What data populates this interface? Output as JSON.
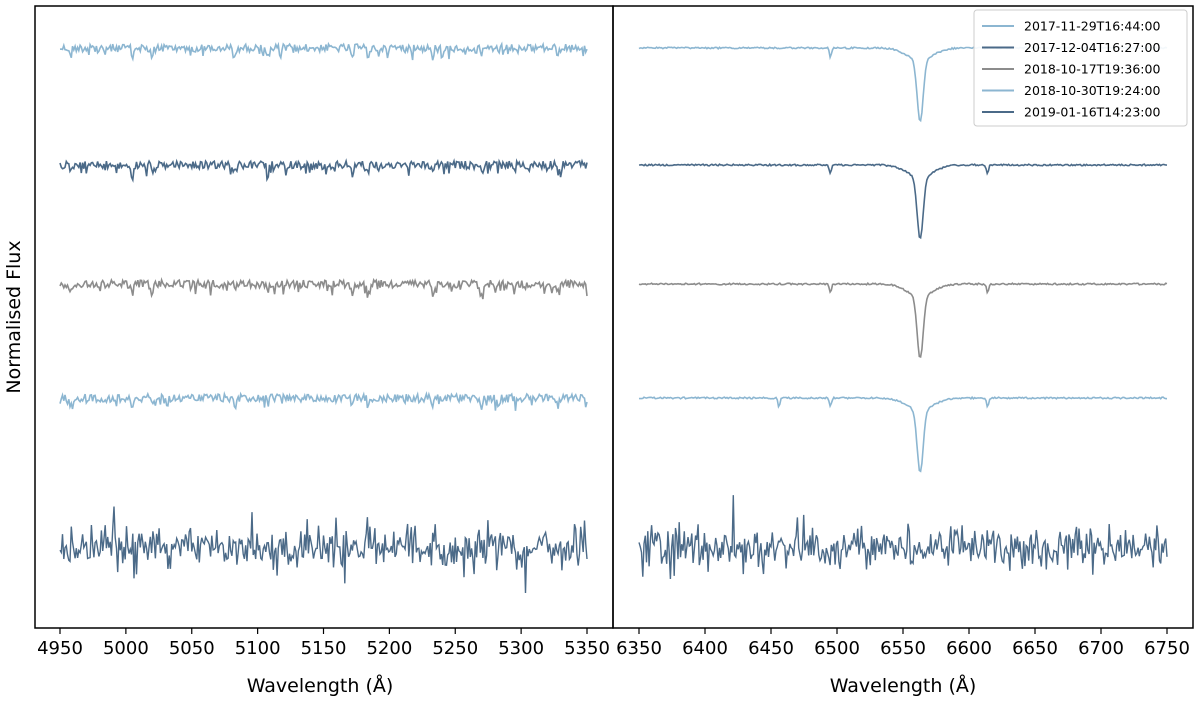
{
  "chart_data": {
    "type": "line",
    "ylabel": "Normalised Flux",
    "legend": {
      "placement": "top-right",
      "entries": [
        {
          "label": "2017-11-29T16:44:00",
          "color": "#8cb6d1"
        },
        {
          "label": "2017-12-04T16:27:00",
          "color": "#4b6a88"
        },
        {
          "label": "2018-10-17T19:36:00",
          "color": "#8c8c8c"
        },
        {
          "label": "2018-10-30T19:24:00",
          "color": "#8cb6d1"
        },
        {
          "label": "2019-01-16T14:23:00",
          "color": "#4b6a88"
        }
      ]
    },
    "panels": [
      {
        "xlabel": "Wavelength (Å)",
        "xlim": [
          4950,
          5350
        ],
        "xticks": [
          4950,
          5000,
          5050,
          5100,
          5150,
          5200,
          5250,
          5300,
          5350
        ],
        "xtick_labels": [
          "4950",
          "5000",
          "5050",
          "5100",
          "5150",
          "5200",
          "5250",
          "5300",
          "5350"
        ],
        "grid": false,
        "series": [
          {
            "color": "#8cb6d1",
            "offset_level": 4,
            "absorption_lines": [
              4958,
              4979,
              5005,
              5020,
              5083,
              5108,
              5172,
              5184,
              5233,
              5270,
              5283,
              5328
            ]
          },
          {
            "color": "#4b6a88",
            "offset_level": 3,
            "absorption_lines": [
              4958,
              5005,
              5020,
              5083,
              5108,
              5172,
              5184,
              5233,
              5270,
              5328
            ]
          },
          {
            "color": "#8c8c8c",
            "offset_level": 2,
            "absorption_lines": [
              4958,
              5005,
              5020,
              5108,
              5172,
              5184,
              5233,
              5270,
              5328
            ]
          },
          {
            "color": "#8cb6d1",
            "offset_level": 1,
            "absorption_lines": [
              4960,
              5005,
              5020,
              5083,
              5108,
              5172,
              5184,
              5233,
              5270,
              5283,
              5328
            ]
          },
          {
            "color": "#4b6a88",
            "offset_level": 0,
            "noisy": true
          }
        ]
      },
      {
        "xlabel": "Wavelength (Å)",
        "xlim": [
          6350,
          6750
        ],
        "xticks": [
          6350,
          6400,
          6450,
          6500,
          6550,
          6600,
          6650,
          6700,
          6750
        ],
        "xtick_labels": [
          "6350",
          "6400",
          "6450",
          "6500",
          "6550",
          "6600",
          "6650",
          "6700",
          "6750"
        ],
        "grid": false,
        "series": [
          {
            "color": "#8cb6d1",
            "offset_level": 4,
            "absorption_lines": [
              6495,
              6563
            ]
          },
          {
            "color": "#4b6a88",
            "offset_level": 3,
            "absorption_lines": [
              6495,
              6563,
              6614
            ]
          },
          {
            "color": "#8c8c8c",
            "offset_level": 2,
            "absorption_lines": [
              6495,
              6563,
              6614
            ]
          },
          {
            "color": "#8cb6d1",
            "offset_level": 1,
            "absorption_lines": [
              6456,
              6495,
              6563,
              6614
            ]
          },
          {
            "color": "#4b6a88",
            "offset_level": 0,
            "noisy": true
          }
        ]
      }
    ]
  }
}
